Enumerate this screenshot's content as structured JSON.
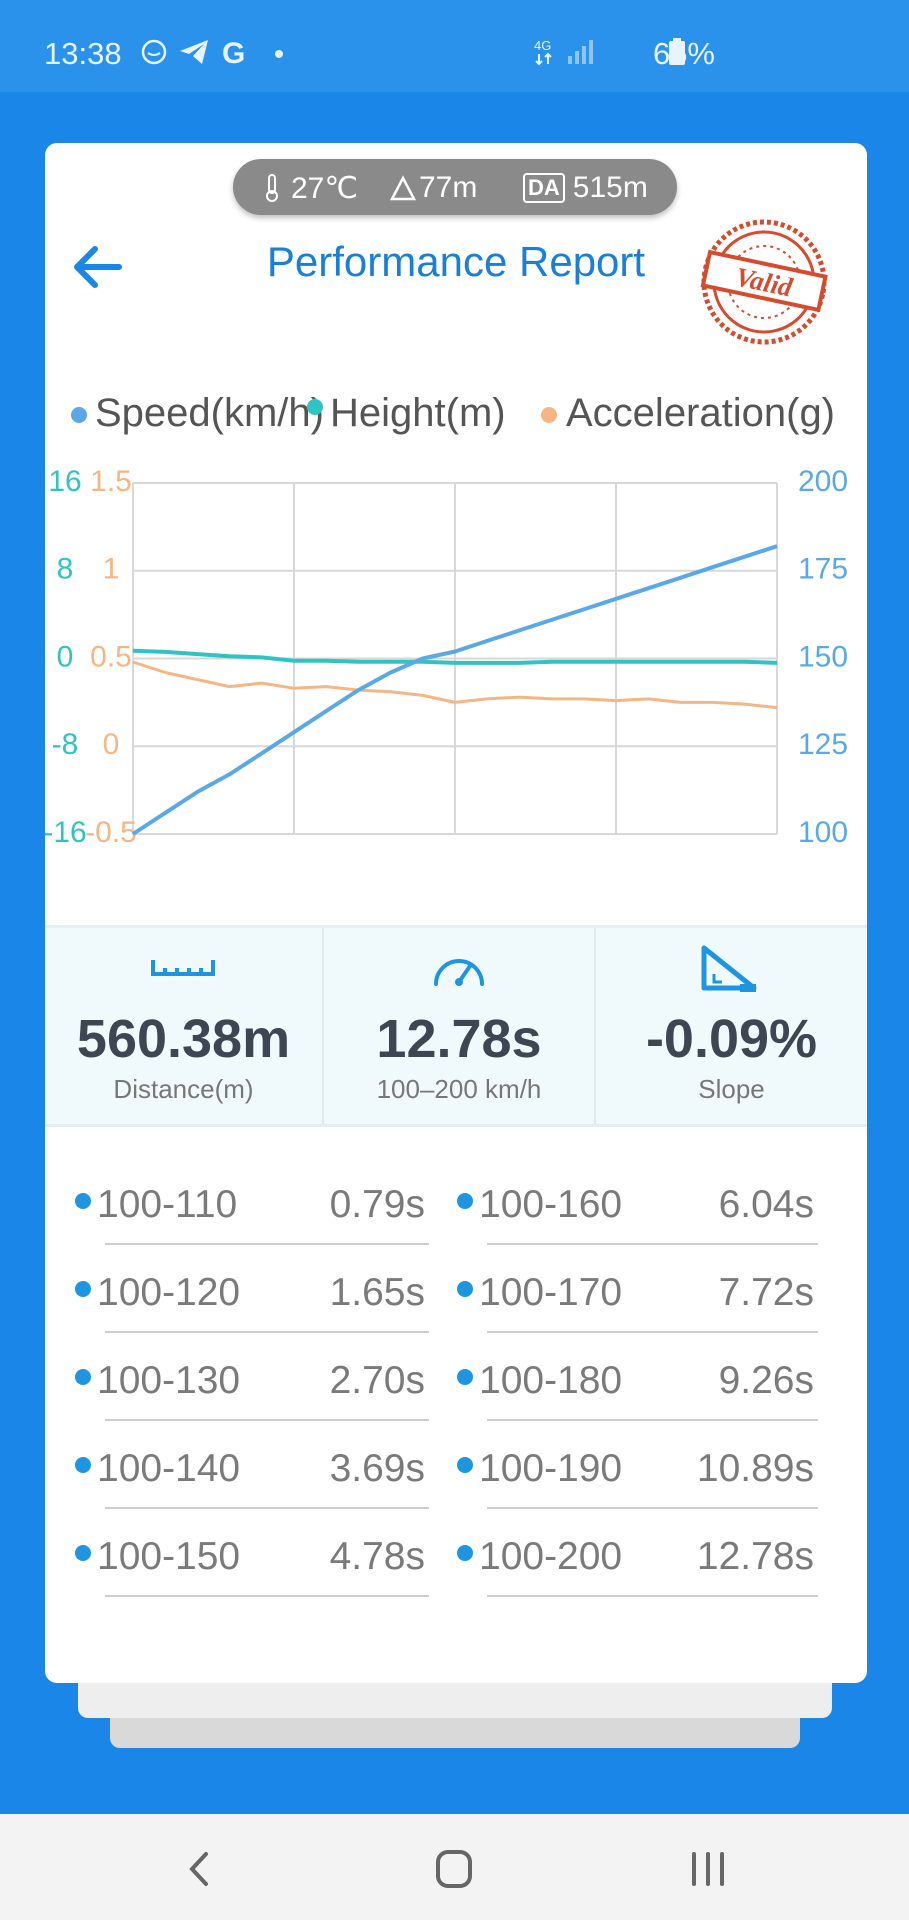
{
  "status_bar": {
    "time": "13:38",
    "network": "4G",
    "battery": "65%",
    "left_icons": [
      "alarm-icon",
      "telegram-icon",
      "google-icon",
      "dot-icon"
    ],
    "right_icons": [
      "network-4g-icon",
      "signal-icon",
      "battery-icon"
    ]
  },
  "header": {
    "title": "Performance Report",
    "stamp_text": "Valid"
  },
  "environment": {
    "temperature": "27℃",
    "altitude": "77m",
    "da_badge": "DA",
    "density_altitude": "515m"
  },
  "legend": {
    "speed": "Speed(km/h)",
    "height": "Height(m)",
    "acceleration": "Acceleration(g)"
  },
  "colors": {
    "speed": "#5aa9e6",
    "height": "#2ec4c4",
    "acceleration": "#f5b684",
    "accent": "#1a7fd6",
    "stamp": "#d64a2e"
  },
  "chart_data": {
    "type": "line",
    "title": "",
    "x": [
      0,
      0.05,
      0.1,
      0.15,
      0.2,
      0.25,
      0.3,
      0.35,
      0.4,
      0.45,
      0.5,
      0.55,
      0.6,
      0.65,
      0.7,
      0.75,
      0.8,
      0.85,
      0.9,
      0.95,
      1.0
    ],
    "series": [
      {
        "name": "Speed(km/h)",
        "axis": "right",
        "values": [
          100,
          106,
          112,
          117,
          123,
          129,
          135,
          141,
          146,
          150,
          152,
          155,
          158,
          161,
          164,
          167,
          170,
          173,
          176,
          179,
          182
        ]
      },
      {
        "name": "Height(m)",
        "axis": "left-outer",
        "values": [
          0.7,
          0.6,
          0.4,
          0.2,
          0.1,
          -0.2,
          -0.2,
          -0.3,
          -0.3,
          -0.3,
          -0.4,
          -0.4,
          -0.4,
          -0.3,
          -0.3,
          -0.3,
          -0.3,
          -0.3,
          -0.3,
          -0.3,
          -0.4
        ]
      },
      {
        "name": "Acceleration(g)",
        "axis": "left-inner",
        "values": [
          0.48,
          0.42,
          0.38,
          0.34,
          0.36,
          0.33,
          0.34,
          0.32,
          0.31,
          0.29,
          0.25,
          0.27,
          0.28,
          0.27,
          0.27,
          0.26,
          0.27,
          0.25,
          0.25,
          0.24,
          0.22
        ]
      }
    ],
    "axes": {
      "left_outer": {
        "ticks": [
          "16",
          "8",
          "0",
          "-8",
          "-16"
        ],
        "range": [
          -16,
          16
        ]
      },
      "left_inner": {
        "ticks": [
          "1.5",
          "1",
          "0.5",
          "0",
          "-0.5"
        ],
        "range": [
          -0.5,
          1.5
        ]
      },
      "right": {
        "ticks": [
          "200",
          "175",
          "150",
          "125",
          "100"
        ],
        "range": [
          100,
          200
        ]
      }
    },
    "grid": true,
    "legend_position": "top"
  },
  "stats": [
    {
      "icon": "ruler-icon",
      "value": "560.38m",
      "label": "Distance(m)"
    },
    {
      "icon": "speedometer-icon",
      "value": "12.78s",
      "label": "100–200 km/h"
    },
    {
      "icon": "slope-icon",
      "value": "-0.09%",
      "label": "Slope"
    }
  ],
  "splits_left": [
    {
      "range": "100-110",
      "time": "0.79s"
    },
    {
      "range": "100-120",
      "time": "1.65s"
    },
    {
      "range": "100-130",
      "time": "2.70s"
    },
    {
      "range": "100-140",
      "time": "3.69s"
    },
    {
      "range": "100-150",
      "time": "4.78s"
    }
  ],
  "splits_right": [
    {
      "range": "100-160",
      "time": "6.04s"
    },
    {
      "range": "100-170",
      "time": "7.72s"
    },
    {
      "range": "100-180",
      "time": "9.26s"
    },
    {
      "range": "100-190",
      "time": "10.89s"
    },
    {
      "range": "100-200",
      "time": "12.78s"
    }
  ],
  "nav": [
    "back-nav-icon",
    "home-nav-icon",
    "recents-nav-icon"
  ]
}
